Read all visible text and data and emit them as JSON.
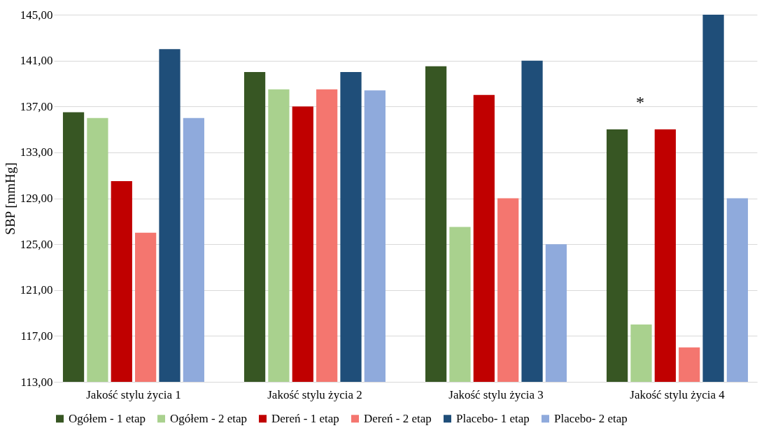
{
  "chart_data": {
    "type": "bar",
    "ylabel": "SBP [mmHg]",
    "categories": [
      "Jakość stylu życia 1",
      "Jakość stylu życia 2",
      "Jakość stylu życia 3",
      "Jakość stylu życia 4"
    ],
    "series": [
      {
        "name": "Ogółem - 1 etap",
        "color": "#375623",
        "values": [
          136.5,
          140.0,
          140.5,
          135.0
        ]
      },
      {
        "name": "Ogółem - 2 etap",
        "color": "#a9d18e",
        "values": [
          136.0,
          138.5,
          126.5,
          118.0
        ]
      },
      {
        "name": "Dereń - 1 etap",
        "color": "#c00000",
        "values": [
          130.5,
          137.0,
          138.0,
          135.0
        ]
      },
      {
        "name": "Dereń - 2 etap",
        "color": "#f4766f",
        "values": [
          126.0,
          138.5,
          129.0,
          116.0
        ]
      },
      {
        "name": "Placebo- 1 etap",
        "color": "#1f4e79",
        "values": [
          142.0,
          140.0,
          141.0,
          145.0
        ]
      },
      {
        "name": "Placebo- 2 etap",
        "color": "#8faadc",
        "values": [
          136.0,
          138.4,
          125.0,
          129.0
        ]
      }
    ],
    "ylim": [
      113,
      145
    ],
    "yticks": [
      {
        "value": 113,
        "label": "113,00"
      },
      {
        "value": 117,
        "label": "117,00"
      },
      {
        "value": 121,
        "label": "121,00"
      },
      {
        "value": 125,
        "label": "125,00"
      },
      {
        "value": 129,
        "label": "129,00"
      },
      {
        "value": 133,
        "label": "133,00"
      },
      {
        "value": 137,
        "label": "137,00"
      },
      {
        "value": 141,
        "label": "141,00"
      },
      {
        "value": 145,
        "label": "145,00"
      }
    ],
    "grid": "y",
    "legend": "bottom",
    "annotations": [
      "*"
    ]
  }
}
